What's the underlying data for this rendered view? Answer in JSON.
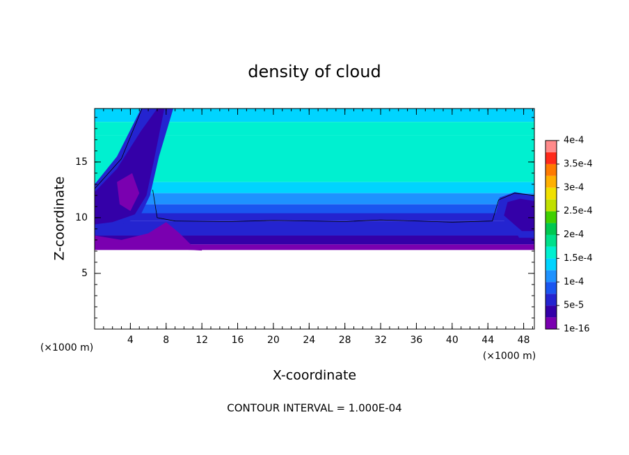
{
  "chart_data": {
    "type": "contour",
    "title": "density of cloud",
    "x_label": "X-coordinate",
    "y_label": "Z-coordinate",
    "x_unit": "(×1000 m)",
    "y_unit": "(×1000 m)",
    "annotation": "CONTOUR INTERVAL = 1.000E-04",
    "xlim": [
      0,
      49.2
    ],
    "ylim": [
      0,
      19.8
    ],
    "xticks": [
      4,
      8,
      12,
      16,
      20,
      24,
      28,
      32,
      36,
      40,
      44,
      48
    ],
    "yticks": [
      5,
      10,
      15
    ],
    "colorbar": {
      "levels": [
        1e-16,
        2.5e-05,
        5e-05,
        7.5e-05,
        0.0001,
        0.000125,
        0.00015,
        0.000175,
        0.0002,
        0.000225,
        0.00025,
        0.000275,
        0.0003,
        0.000325,
        0.00035,
        0.000375,
        0.0004
      ],
      "colors": [
        "#7a00b0",
        "#3400a8",
        "#2424d0",
        "#1a56f0",
        "#1e92ff",
        "#00d4ff",
        "#00f0d0",
        "#00e08a",
        "#00c850",
        "#40d000",
        "#c0e000",
        "#f0e000",
        "#ffb000",
        "#ff7a00",
        "#ff2a1a",
        "#ff8a8a"
      ],
      "ticks": [
        {
          "value": 1e-16,
          "label": "1e-16"
        },
        {
          "value": 5e-05,
          "label": "5e-5"
        },
        {
          "value": 0.0001,
          "label": "1e-4"
        },
        {
          "value": 0.00015,
          "label": "1.5e-4"
        },
        {
          "value": 0.0002,
          "label": "2e-4"
        },
        {
          "value": 0.00025,
          "label": "2.5e-4"
        },
        {
          "value": 0.0003,
          "label": "3e-4"
        },
        {
          "value": 0.00035,
          "label": "3.5e-4"
        },
        {
          "value": 0.0004,
          "label": "4e-4"
        }
      ]
    }
  }
}
